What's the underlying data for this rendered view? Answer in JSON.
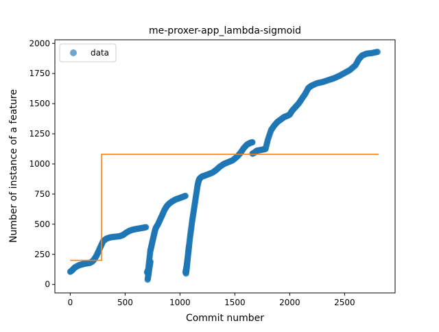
{
  "chart_data": {
    "type": "scatter",
    "title": "me-proxer-app_lambda-sigmoid",
    "xlabel": "Commit number",
    "ylabel": "Number of instance of a feature",
    "xlim": [
      -140,
      2960
    ],
    "ylim": [
      -70,
      2030
    ],
    "xticks": [
      0,
      500,
      1000,
      1500,
      2000,
      2500
    ],
    "yticks": [
      0,
      250,
      500,
      750,
      1000,
      1250,
      1500,
      1750,
      2000
    ],
    "grid": false,
    "legend": {
      "position": "top-left",
      "entries": [
        "data"
      ]
    },
    "series": [
      {
        "name": "data",
        "kind": "scatter",
        "color": "#1f77b4",
        "segments": [
          [
            [
              0,
              105
            ],
            [
              20,
              120
            ],
            [
              40,
              140
            ],
            [
              60,
              150
            ],
            [
              80,
              160
            ],
            [
              100,
              165
            ],
            [
              120,
              170
            ],
            [
              150,
              175
            ],
            [
              180,
              180
            ],
            [
              200,
              190
            ],
            [
              220,
              210
            ],
            [
              240,
              240
            ],
            [
              260,
              280
            ],
            [
              280,
              320
            ],
            [
              300,
              360
            ],
            [
              330,
              380
            ],
            [
              360,
              390
            ],
            [
              400,
              395
            ],
            [
              450,
              400
            ],
            [
              480,
              410
            ],
            [
              510,
              430
            ],
            [
              540,
              445
            ],
            [
              570,
              455
            ],
            [
              600,
              460
            ],
            [
              630,
              465
            ],
            [
              660,
              470
            ],
            [
              690,
              475
            ]
          ],
          [
            [
              700,
              100
            ],
            [
              710,
              120
            ],
            [
              720,
              200
            ],
            [
              730,
              280
            ],
            [
              740,
              320
            ],
            [
              750,
              360
            ],
            [
              760,
              400
            ],
            [
              770,
              440
            ],
            [
              780,
              470
            ],
            [
              800,
              500
            ],
            [
              820,
              540
            ],
            [
              840,
              580
            ],
            [
              860,
              620
            ],
            [
              880,
              650
            ],
            [
              900,
              670
            ],
            [
              930,
              690
            ],
            [
              960,
              705
            ],
            [
              990,
              715
            ],
            [
              1020,
              725
            ],
            [
              1050,
              735
            ]
          ],
          [
            [
              1050,
              100
            ],
            [
              1060,
              150
            ],
            [
              1070,
              220
            ],
            [
              1080,
              300
            ],
            [
              1090,
              380
            ],
            [
              1100,
              450
            ],
            [
              1110,
              520
            ],
            [
              1120,
              580
            ],
            [
              1130,
              640
            ],
            [
              1140,
              700
            ],
            [
              1150,
              760
            ],
            [
              1160,
              820
            ],
            [
              1170,
              860
            ],
            [
              1180,
              880
            ],
            [
              1200,
              895
            ],
            [
              1230,
              905
            ],
            [
              1260,
              915
            ],
            [
              1300,
              930
            ],
            [
              1330,
              950
            ],
            [
              1360,
              975
            ],
            [
              1400,
              1000
            ],
            [
              1440,
              1015
            ],
            [
              1480,
              1030
            ],
            [
              1520,
              1060
            ],
            [
              1550,
              1090
            ],
            [
              1580,
              1130
            ],
            [
              1610,
              1160
            ],
            [
              1640,
              1175
            ],
            [
              1660,
              1180
            ]
          ],
          [
            [
              1660,
              1085
            ],
            [
              1680,
              1095
            ],
            [
              1700,
              1110
            ],
            [
              1730,
              1115
            ],
            [
              1760,
              1120
            ],
            [
              1780,
              1125
            ],
            [
              1800,
              1200
            ],
            [
              1830,
              1280
            ],
            [
              1860,
              1320
            ],
            [
              1890,
              1350
            ],
            [
              1920,
              1370
            ],
            [
              1950,
              1390
            ],
            [
              1980,
              1400
            ],
            [
              2000,
              1410
            ],
            [
              2020,
              1440
            ],
            [
              2050,
              1470
            ],
            [
              2080,
              1500
            ],
            [
              2110,
              1540
            ],
            [
              2140,
              1580
            ],
            [
              2170,
              1630
            ],
            [
              2200,
              1650
            ],
            [
              2250,
              1670
            ],
            [
              2300,
              1680
            ],
            [
              2350,
              1695
            ],
            [
              2400,
              1710
            ],
            [
              2450,
              1730
            ],
            [
              2500,
              1755
            ],
            [
              2550,
              1780
            ],
            [
              2600,
              1820
            ],
            [
              2630,
              1870
            ],
            [
              2660,
              1900
            ],
            [
              2700,
              1915
            ],
            [
              2750,
              1920
            ],
            [
              2800,
              1930
            ]
          ],
          [
            [
              705,
              40
            ],
            [
              712,
              80
            ],
            [
              718,
              120
            ],
            [
              725,
              160
            ],
            [
              730,
              190
            ]
          ],
          [
            [
              1055,
              90
            ],
            [
              1062,
              140
            ],
            [
              1068,
              200
            ],
            [
              1075,
              260
            ],
            [
              1082,
              320
            ]
          ]
        ]
      },
      {
        "name": "",
        "kind": "line",
        "color": "#ff7f0e",
        "points": [
          [
            0,
            200
          ],
          [
            285,
            200
          ],
          [
            285,
            1080
          ],
          [
            2810,
            1080
          ]
        ]
      }
    ]
  }
}
